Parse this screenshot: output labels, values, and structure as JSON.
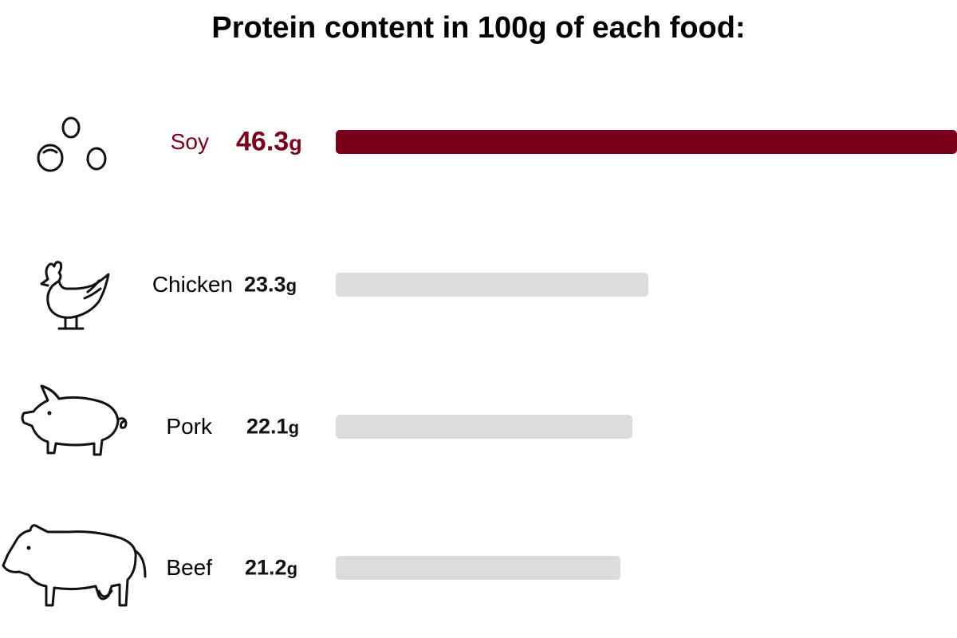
{
  "chart_data": {
    "type": "bar",
    "orientation": "horizontal",
    "title": "Protein content in 100g of each food:",
    "unit": "g",
    "categories": [
      "Soy",
      "Chicken",
      "Pork",
      "Beef"
    ],
    "values": [
      46.3,
      23.3,
      22.1,
      21.2
    ],
    "value_labels": [
      "46.3",
      "23.3",
      "22.1",
      "21.2"
    ],
    "icons": [
      "soybeans-icon",
      "chicken-icon",
      "pig-icon",
      "cow-icon"
    ],
    "highlight_index": 0,
    "xlim": [
      0,
      46.3
    ],
    "grid": false,
    "colors": {
      "highlight": "#7a0019",
      "default_bar": "#dcdcdc",
      "text": "#000000"
    }
  }
}
